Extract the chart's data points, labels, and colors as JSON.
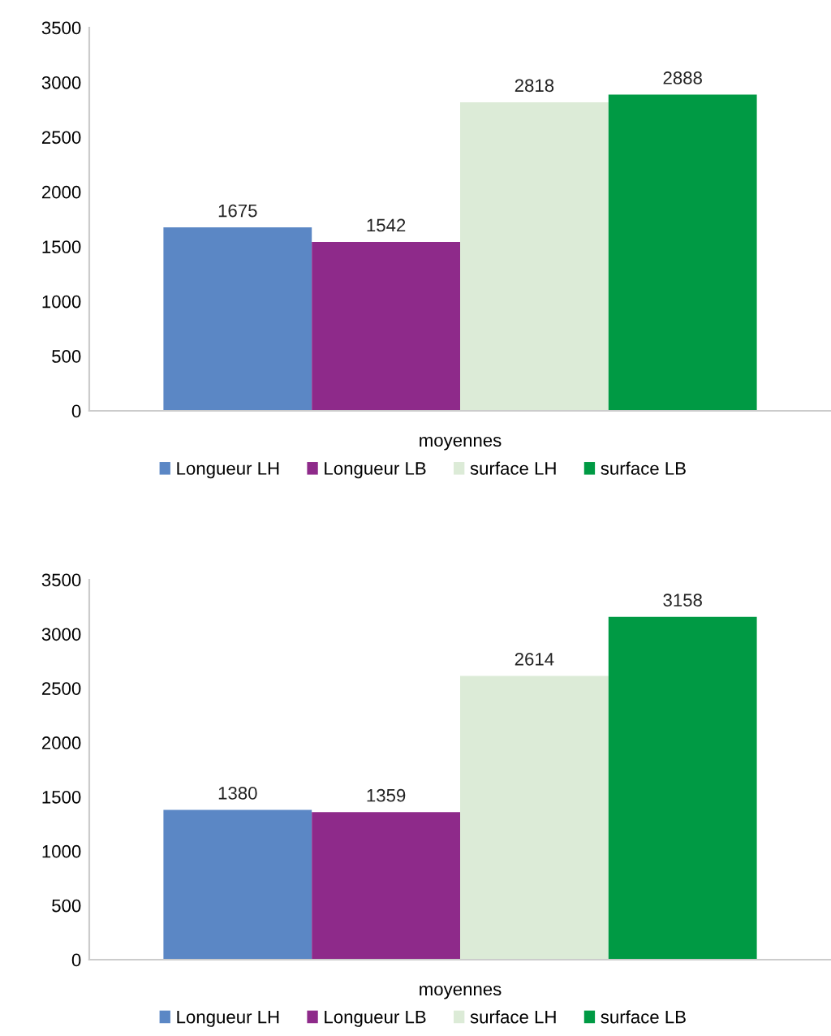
{
  "chart_data": [
    {
      "type": "bar",
      "categories": [
        "moyennes"
      ],
      "ylim": [
        0,
        3500
      ],
      "yticks": [
        0,
        500,
        1000,
        1500,
        2000,
        2500,
        3000,
        3500
      ],
      "data_labels": true,
      "legend": "bottom",
      "grid": false,
      "series": [
        {
          "name": "Longueur LH",
          "color": "#5b87c5",
          "values": [
            1675
          ]
        },
        {
          "name": "Longueur LB",
          "color": "#8e2a8a",
          "values": [
            1542
          ]
        },
        {
          "name": "surface LH",
          "color": "#dcebd7",
          "values": [
            2818
          ]
        },
        {
          "name": "surface LB",
          "color": "#009a44",
          "values": [
            2888
          ]
        }
      ]
    },
    {
      "type": "bar",
      "categories": [
        "moyennes"
      ],
      "ylim": [
        0,
        3500
      ],
      "yticks": [
        0,
        500,
        1000,
        1500,
        2000,
        2500,
        3000,
        3500
      ],
      "data_labels": true,
      "legend": "bottom",
      "grid": false,
      "series": [
        {
          "name": "Longueur LH",
          "color": "#5b87c5",
          "values": [
            1380
          ]
        },
        {
          "name": "Longueur LB",
          "color": "#8e2a8a",
          "values": [
            1359
          ]
        },
        {
          "name": "surface LH",
          "color": "#dcebd7",
          "values": [
            2614
          ]
        },
        {
          "name": "surface LB",
          "color": "#009a44",
          "values": [
            3158
          ]
        }
      ]
    }
  ]
}
